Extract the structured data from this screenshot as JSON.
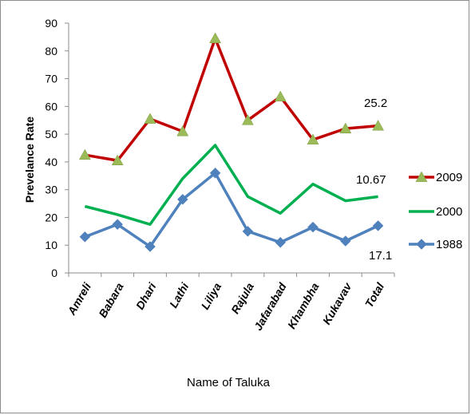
{
  "chart_data": {
    "type": "line",
    "xlabel": "Name of Taluka",
    "ylabel": "Prevelance Rate",
    "ylim": [
      0,
      90
    ],
    "yticks": [
      0,
      10,
      20,
      30,
      40,
      50,
      60,
      70,
      80,
      90
    ],
    "categories": [
      "Amreli",
      "Babara",
      "Dhari",
      "Lathi",
      "Liliya",
      "Rajula",
      "Jafarabad",
      "Khambha",
      "Kukavav",
      "Total"
    ],
    "series": [
      {
        "name": "2009",
        "color": "#c00000",
        "marker": "triangle",
        "marker_color": "#9bbb59",
        "values": [
          42.5,
          40.5,
          55.5,
          51,
          84.5,
          55,
          63.5,
          48,
          52,
          53
        ]
      },
      {
        "name": "2000",
        "color": "#00b050",
        "marker": "none",
        "values": [
          24,
          21,
          17.5,
          34,
          46,
          27.5,
          21.5,
          32,
          26,
          27.5
        ]
      },
      {
        "name": "1988",
        "color": "#4f81bd",
        "marker": "diamond",
        "values": [
          13,
          17.5,
          9.5,
          26.5,
          36,
          15,
          11,
          16.5,
          11.5,
          17
        ]
      }
    ],
    "annotations": [
      "25.2",
      "10.67",
      "17.1"
    ],
    "grid": false,
    "legend": "right"
  }
}
